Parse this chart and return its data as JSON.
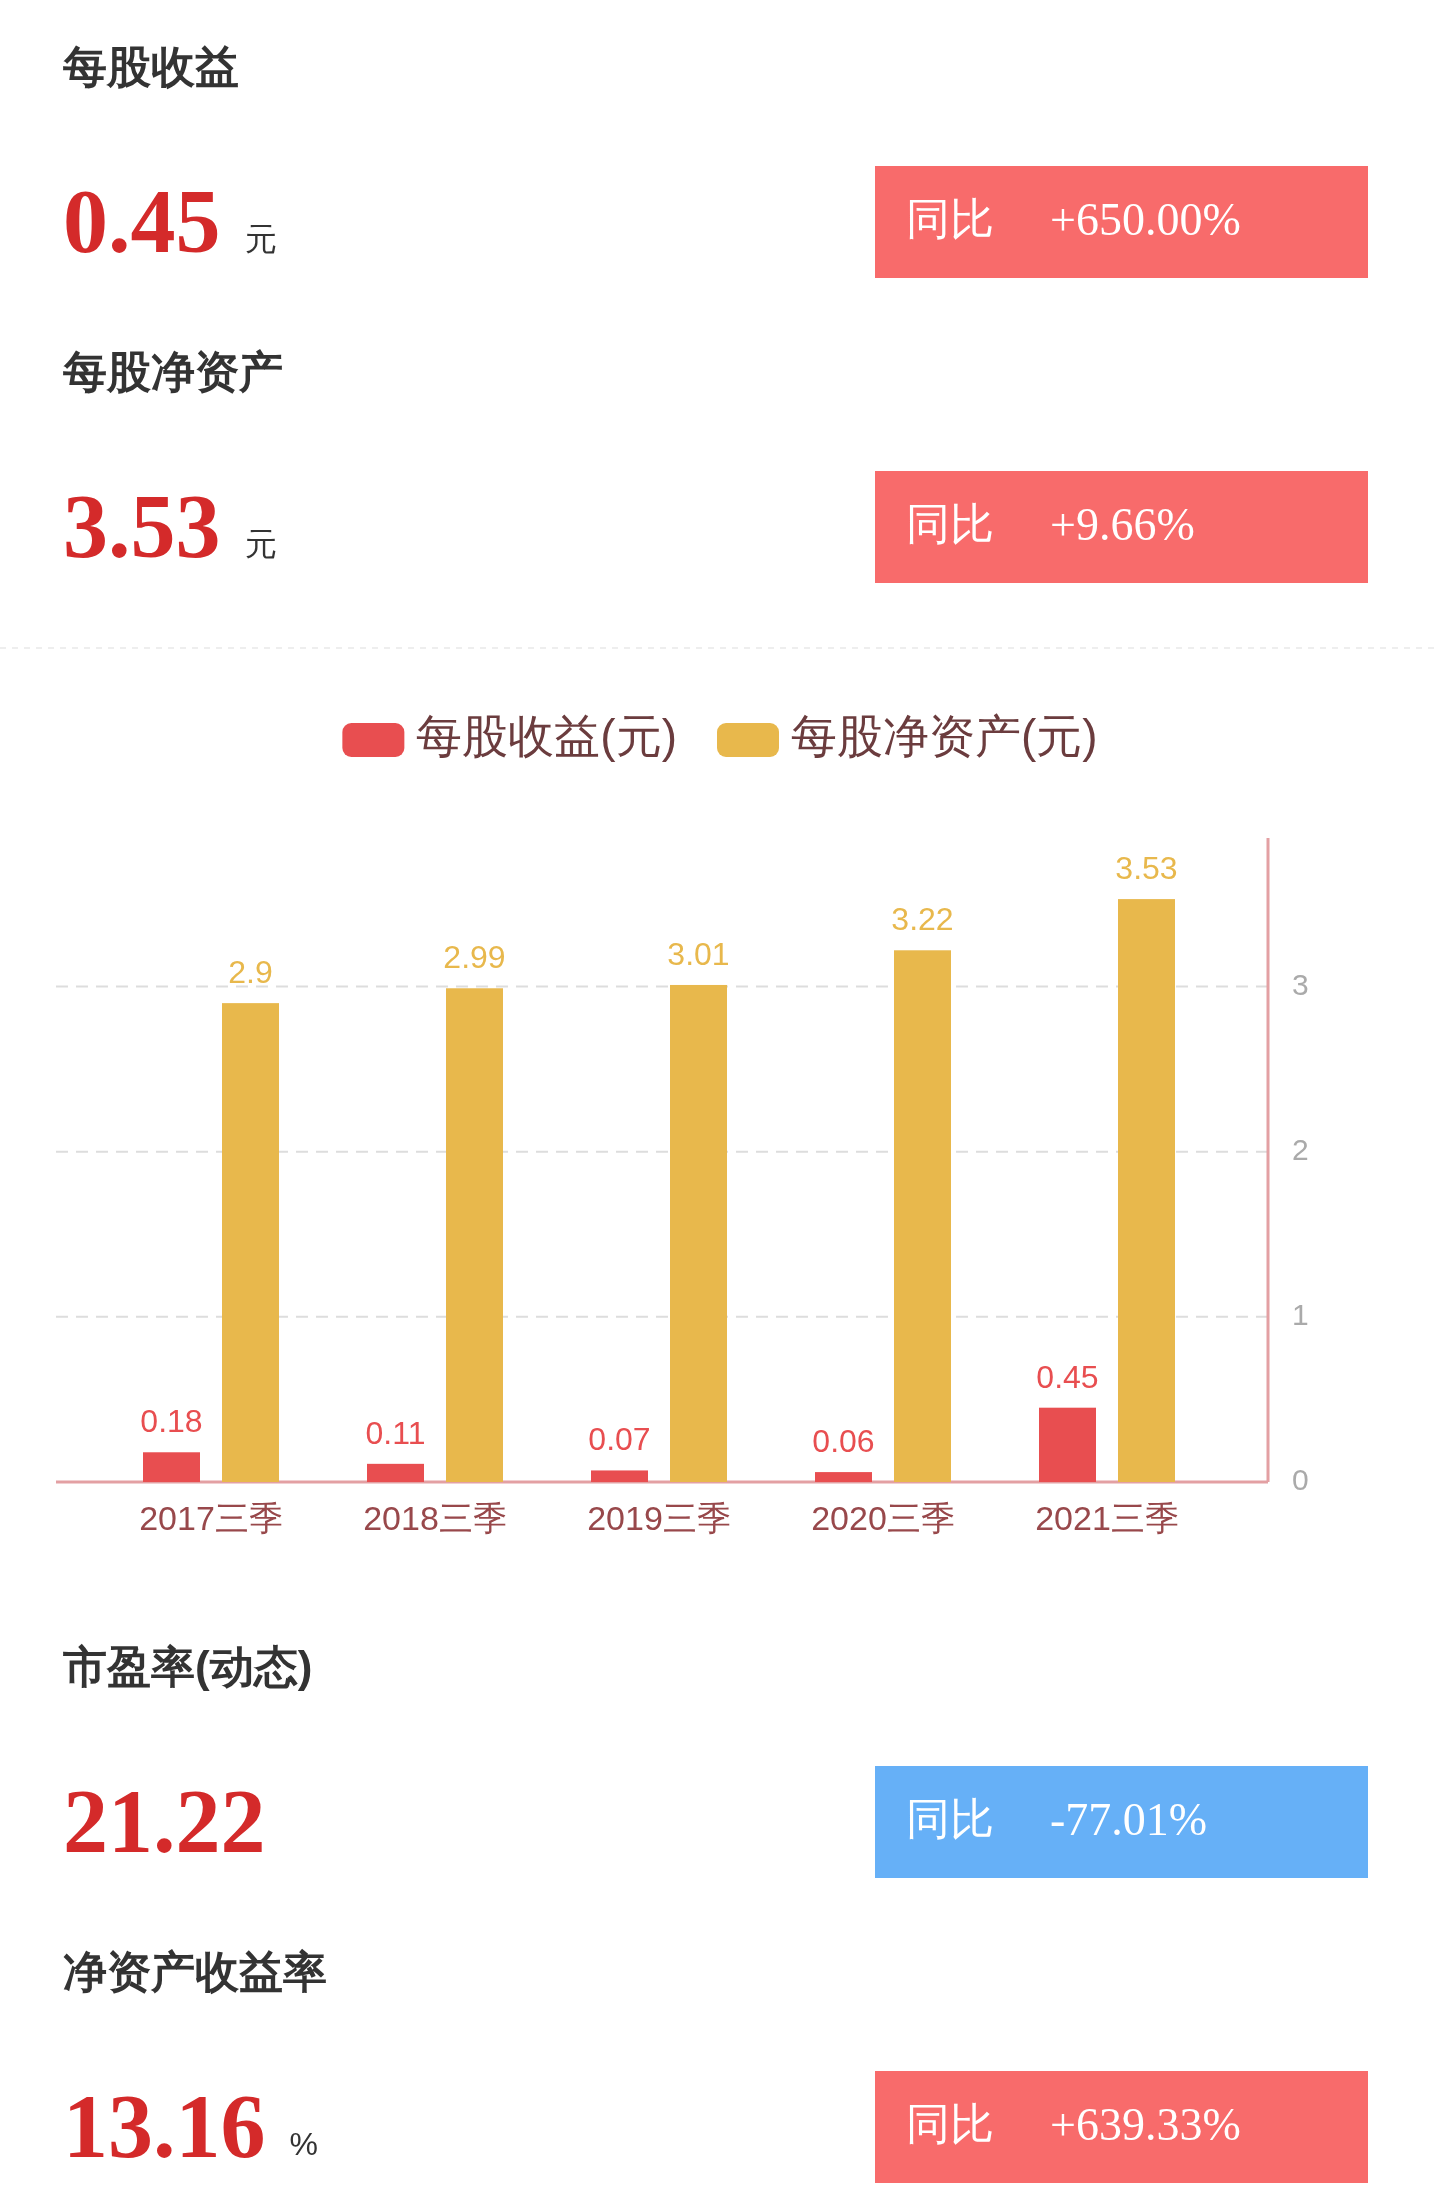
{
  "chart_data": [
    {
      "type": "other",
      "title": "每股收益",
      "annotations": [
        "0.45",
        "元",
        "同比",
        "+650.00%"
      ],
      "color": "#f86b6b"
    },
    {
      "type": "other",
      "title": "每股净资产",
      "annotations": [
        "3.53",
        "元",
        "同比",
        "+9.66%"
      ],
      "color": "#f86b6b"
    },
    {
      "type": "bar",
      "categories": [
        "2017三季",
        "2018三季",
        "2019三季",
        "2020三季",
        "2021三季"
      ],
      "series": [
        {
          "name": "每股收益(元)",
          "color": "#e84e50",
          "values": [
            0.18,
            0.11,
            0.07,
            0.06,
            0.45
          ]
        },
        {
          "name": "每股净资产(元)",
          "color": "#e8b84c",
          "values": [
            2.9,
            2.99,
            3.01,
            3.22,
            3.53
          ]
        }
      ],
      "ylim": [
        0,
        3.9
      ],
      "yticks": [
        0,
        1,
        2,
        3
      ],
      "grid": "y",
      "legend": "top",
      "data_labels": true
    },
    {
      "type": "other",
      "title": "市盈率(动态)",
      "annotations": [
        "21.22",
        "同比",
        "-77.01%"
      ],
      "color": "#66b0f7"
    },
    {
      "type": "other",
      "title": "净资产收益率",
      "annotations": [
        "13.16",
        "%",
        "同比",
        "+639.33%"
      ],
      "color": "#f86b6b"
    }
  ]
}
